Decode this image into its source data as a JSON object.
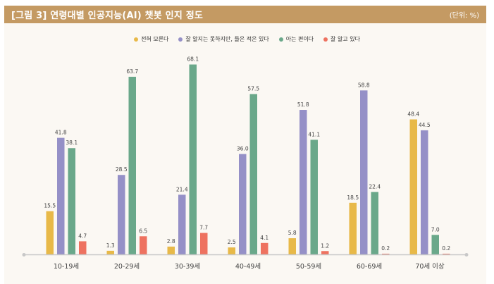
{
  "header": {
    "title": "[그림 3]  연령대별 인공지능(AI) 챗봇 인지 정도",
    "unit": "(단위: %)"
  },
  "colors": {
    "header_bg": "#c49a63",
    "panel_bg": "#fbf8f3",
    "axis": "#c8c8c8"
  },
  "chart_data": {
    "type": "bar",
    "title": "연령대별 인공지능(AI) 챗봇 인지 정도",
    "unit": "%",
    "categories": [
      "10-19세",
      "20-29세",
      "30-39세",
      "40-49세",
      "50-59세",
      "60-69세",
      "70세 이상"
    ],
    "series": [
      {
        "name": "전혀 모른다",
        "color": "#e8b948",
        "values": [
          15.5,
          1.3,
          2.8,
          2.5,
          5.8,
          18.5,
          48.4
        ]
      },
      {
        "name": "잘 알지는 못하지만, 들은 적은 있다",
        "color": "#9590c7",
        "values": [
          41.8,
          28.5,
          21.4,
          36.0,
          51.8,
          58.8,
          44.5
        ]
      },
      {
        "name": "아는 편이다",
        "color": "#6aa88a",
        "values": [
          38.1,
          63.7,
          68.1,
          57.5,
          41.1,
          22.4,
          7.0
        ]
      },
      {
        "name": "잘 알고 있다",
        "color": "#ee7260",
        "values": [
          4.7,
          6.5,
          7.7,
          4.1,
          1.2,
          0.2,
          0.2
        ]
      }
    ],
    "ylim": [
      0,
      70
    ],
    "grid": false,
    "legend_position": "top-center"
  }
}
